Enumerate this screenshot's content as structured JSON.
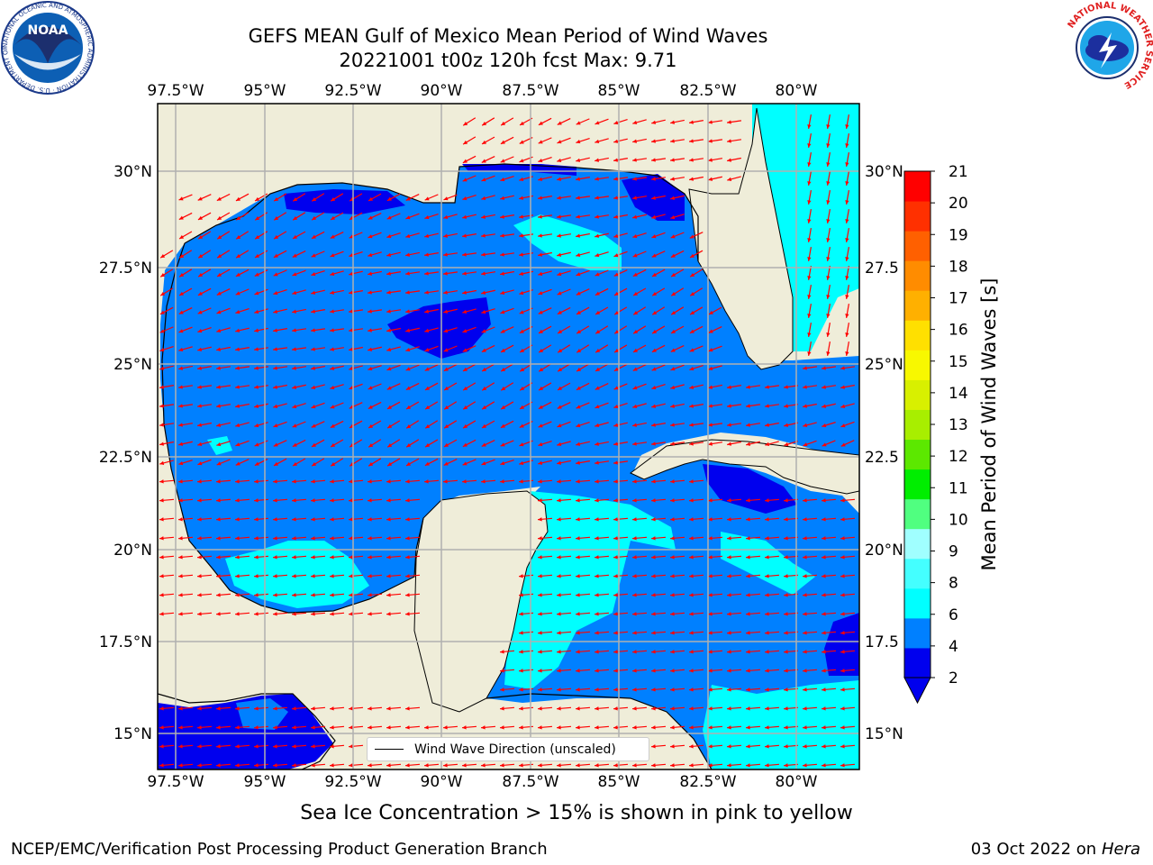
{
  "title_line1": "GEFS MEAN Gulf of Mexico Mean Period of Wind Waves",
  "title_line2": "20221001 t00z 120h fcst   Max: 9.71",
  "footer_note": "Sea Ice Concentration > 15% is shown in pink to yellow",
  "credit": "NCEP/EMC/Verification Post Processing Product Generation Branch",
  "date": "03 Oct 2022 on",
  "host": "Hera",
  "legend_label": "Wind Wave Direction (unscaled)",
  "colorbar_label": "Mean Period of Wind Waves [s]",
  "lon_ticks": [
    "97.5°W",
    "95°W",
    "92.5°W",
    "90°W",
    "87.5°W",
    "85°W",
    "82.5°W",
    "80°W"
  ],
  "lat_ticks_left": [
    "30°N",
    "27.5°N",
    "25°N",
    "22.5°N",
    "20°N",
    "17.5°N",
    "15°N"
  ],
  "lat_ticks_right": [
    "30°N",
    "27.5",
    "25°N",
    "22.5",
    "20°N",
    "17.5",
    "15°N"
  ],
  "colorbar_ticks": [
    "21",
    "20",
    "19",
    "18",
    "17",
    "16",
    "15",
    "14",
    "13",
    "12",
    "11",
    "10",
    "9",
    "8",
    "6",
    "4",
    "2"
  ],
  "colorbar_colors": [
    "#0000ee",
    "#0080ff",
    "#00ffff",
    "#44ffff",
    "#a0ffff",
    "#50ff80",
    "#00ee00",
    "#5ce800",
    "#a8ee00",
    "#d8f000",
    "#f8f800",
    "#ffe000",
    "#ffb000",
    "#ff8c00",
    "#ff6000",
    "#ff3000",
    "#ff0000"
  ],
  "colors": {
    "land": "#efedd9",
    "ocean_main": "#0080ff",
    "ocean_deep": "#0000ee",
    "ocean_light": "#00ffff",
    "arrow": "#ff0000",
    "grid": "#b0b0b0"
  },
  "logos": {
    "noaa_text": "NOAA",
    "noaa_ring_text": "NATIONAL OCEANIC AND ATMOSPHERIC ADMINISTRATION · U.S. DEPARTMENT OF COMMERCE",
    "nws_ring_text": "NATIONAL WEATHER SERVICE"
  }
}
